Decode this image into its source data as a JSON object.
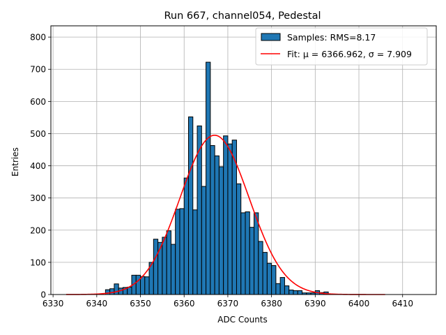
{
  "chart_data": {
    "type": "bar",
    "title": "Run 667, channel054, Pedestal",
    "xlabel": "ADC Counts",
    "ylabel": "Entries",
    "xlim": [
      6329.5,
      6417.7
    ],
    "ylim": [
      0,
      835
    ],
    "xticks": [
      6330,
      6340,
      6350,
      6360,
      6370,
      6380,
      6390,
      6400,
      6410
    ],
    "yticks": [
      0,
      100,
      200,
      300,
      400,
      500,
      600,
      700,
      800
    ],
    "grid": true,
    "legend_position": "top-right",
    "series": [
      {
        "name": "Samples: RMS=8.17",
        "kind": "histogram",
        "color": "#1f77b4",
        "edge_color": "#000000",
        "bins": [
          6342,
          6343,
          6344,
          6345,
          6346,
          6347,
          6348,
          6349,
          6350,
          6351,
          6352,
          6353,
          6354,
          6355,
          6356,
          6357,
          6358,
          6359,
          6360,
          6361,
          6362,
          6363,
          6364,
          6365,
          6366,
          6367,
          6368,
          6369,
          6370,
          6371,
          6372,
          6373,
          6374,
          6375,
          6376,
          6377,
          6378,
          6379,
          6380,
          6381,
          6382,
          6383,
          6384,
          6385,
          6386,
          6387,
          6388,
          6389,
          6390,
          6391,
          6392
        ],
        "values": [
          15,
          18,
          33,
          20,
          22,
          23,
          60,
          60,
          56,
          55,
          100,
          172,
          162,
          178,
          198,
          156,
          265,
          267,
          362,
          552,
          263,
          524,
          336,
          722,
          463,
          431,
          397,
          493,
          468,
          480,
          344,
          254,
          257,
          209,
          254,
          165,
          131,
          97,
          90,
          34,
          53,
          27,
          14,
          12,
          12,
          5,
          5,
          5,
          12,
          6,
          8
        ]
      },
      {
        "name": "Fit: μ = 6366.962, σ = 7.909",
        "kind": "gaussian",
        "color": "#ff0000",
        "mu": 6366.962,
        "sigma": 7.909,
        "amplitude": 495,
        "range": [
          6333,
          6406
        ]
      }
    ]
  }
}
